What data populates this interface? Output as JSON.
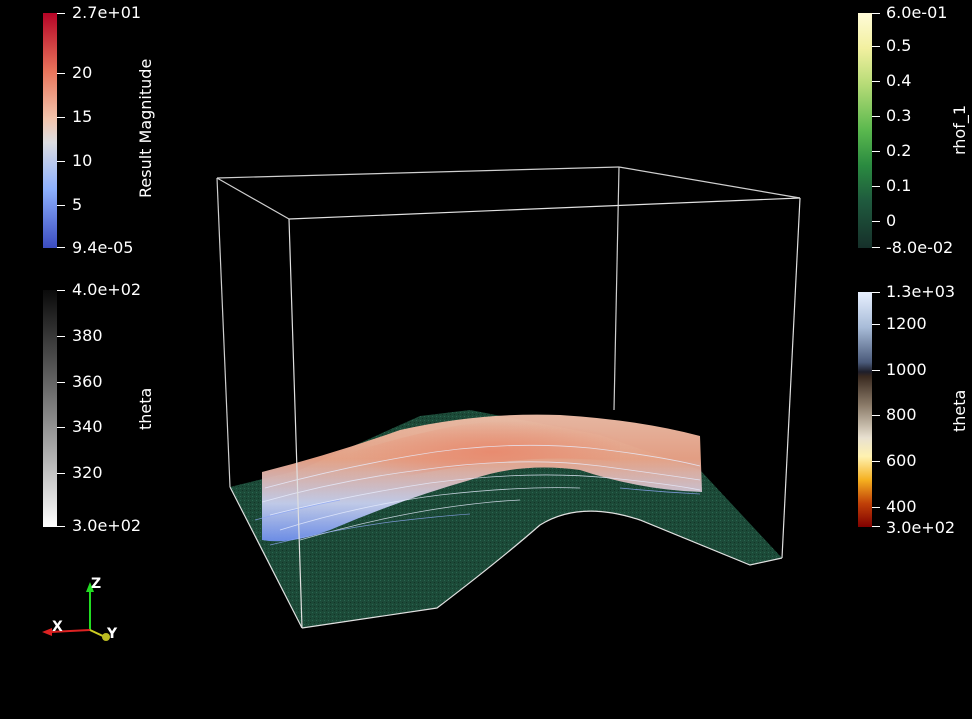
{
  "colorbars": {
    "result_magnitude": {
      "title": "Result Magnitude",
      "labels": [
        "2.7e+01",
        "20",
        "15",
        "10",
        "5",
        "9.4e-05"
      ]
    },
    "theta_gray": {
      "title": "theta",
      "labels": [
        "4.0e+02",
        "380",
        "360",
        "340",
        "320",
        "3.0e+02"
      ]
    },
    "rhof_1": {
      "title": "rhof_1",
      "labels": [
        "6.0e-01",
        "0.5",
        "0.4",
        "0.3",
        "0.2",
        "0.1",
        "0",
        "-8.0e-02"
      ]
    },
    "theta_heat": {
      "title": "theta",
      "labels": [
        "1.3e+03",
        "1200",
        "1000",
        "800",
        "600",
        "400",
        "3.0e+02"
      ]
    }
  },
  "orientation_axes": {
    "x": "X",
    "y": "Y",
    "z": "Z"
  },
  "colors": {
    "background": "#000000",
    "terrain": "#1c4a38",
    "flow_high": "#f0a080",
    "flow_low": "#6a8ff0",
    "box": "#d0d0d0"
  }
}
